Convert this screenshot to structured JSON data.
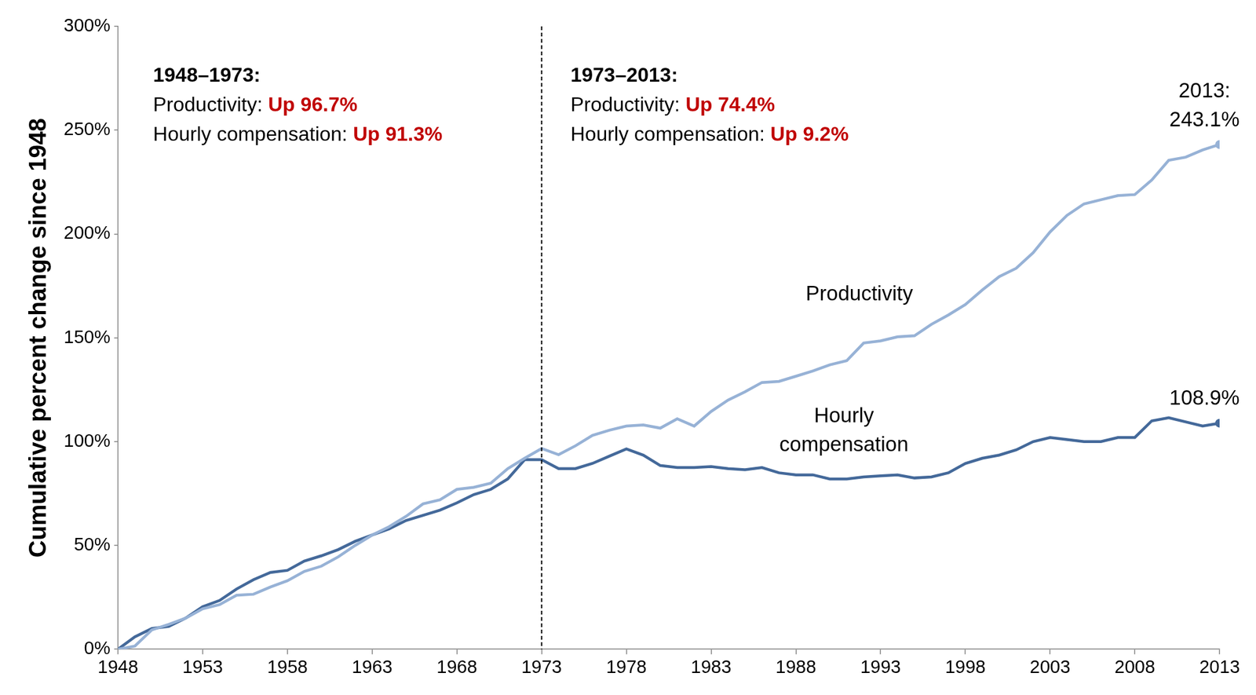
{
  "chart_data": {
    "type": "line",
    "y_label": "Cumulative percent change since 1948",
    "x": [
      1948,
      1949,
      1950,
      1951,
      1952,
      1953,
      1954,
      1955,
      1956,
      1957,
      1958,
      1959,
      1960,
      1961,
      1962,
      1963,
      1964,
      1965,
      1966,
      1967,
      1968,
      1969,
      1970,
      1971,
      1972,
      1973,
      1974,
      1975,
      1976,
      1977,
      1978,
      1979,
      1980,
      1981,
      1982,
      1983,
      1984,
      1985,
      1986,
      1987,
      1988,
      1989,
      1990,
      1991,
      1992,
      1993,
      1994,
      1995,
      1996,
      1997,
      1998,
      1999,
      2000,
      2001,
      2002,
      2003,
      2004,
      2005,
      2006,
      2007,
      2008,
      2009,
      2010,
      2011,
      2012,
      2013
    ],
    "series": [
      {
        "name": "Productivity",
        "color": "#97b2d6",
        "end_label": [
          "2013:",
          "243.1%"
        ],
        "values": [
          0,
          1.5,
          9.3,
          12,
          15,
          19.5,
          21.5,
          26,
          26.5,
          30,
          33,
          37.5,
          40,
          44.5,
          50,
          55,
          59,
          64,
          70,
          72,
          77,
          78,
          80,
          87,
          92,
          96.7,
          93.7,
          98,
          103,
          105.5,
          107.5,
          108,
          106.5,
          111,
          107.5,
          114.5,
          120,
          124,
          128.5,
          129,
          131.5,
          134,
          137,
          139,
          147.5,
          148.5,
          150.5,
          151,
          156.5,
          161,
          166,
          173,
          179.5,
          183.5,
          191,
          201,
          209,
          214.5,
          216.5,
          218.5,
          219,
          226,
          235.5,
          237,
          240.5,
          243.1
        ]
      },
      {
        "name": "Hourly compensation",
        "color": "#44699a",
        "end_label": [
          "108.9%"
        ],
        "values": [
          0,
          6,
          10,
          11,
          15,
          20.5,
          23.5,
          29,
          33.5,
          37,
          38,
          42.5,
          45,
          48,
          52,
          55,
          58,
          62,
          64.5,
          67,
          70.5,
          74.5,
          77,
          82,
          91.3,
          91.3,
          87,
          87,
          89.5,
          93,
          96.5,
          93.5,
          88.5,
          87.5,
          87.5,
          88,
          87,
          86.5,
          87.5,
          85,
          84,
          84,
          82,
          82,
          83,
          83.5,
          84,
          82.5,
          83,
          85,
          89.5,
          92,
          93.5,
          96,
          100,
          102,
          101,
          100,
          100,
          102,
          102,
          110,
          111.5,
          109.5,
          107.5,
          108.9
        ]
      }
    ],
    "xlim": [
      1948,
      2013
    ],
    "xticks": [
      1948,
      1953,
      1958,
      1963,
      1968,
      1973,
      1978,
      1983,
      1988,
      1993,
      1998,
      2003,
      2008,
      2013
    ],
    "ylim": [
      0,
      300
    ],
    "yticks": [
      {
        "value": 0,
        "label": "0%"
      },
      {
        "value": 50,
        "label": "50%"
      },
      {
        "value": 100,
        "label": "100%"
      },
      {
        "value": 150,
        "label": "150%"
      },
      {
        "value": 200,
        "label": "200%"
      },
      {
        "value": 250,
        "label": "250%"
      },
      {
        "value": 300,
        "label": "300%"
      }
    ],
    "grid": false,
    "reference_line": {
      "x": 1973,
      "line_style": "dashed",
      "color": "#000000"
    },
    "annotations": [
      {
        "title": "1948–1973:",
        "color": "#c00000",
        "lines": [
          {
            "text": "Productivity:",
            "highlight": "Up 96.7%"
          },
          {
            "text": "Hourly compensation:",
            "highlight": "Up 91.3%"
          }
        ]
      },
      {
        "title": "1973–2013:",
        "color": "#c00000",
        "lines": [
          {
            "text": "Productivity:",
            "highlight": "Up 74.4%"
          },
          {
            "text": "Hourly compensation:",
            "highlight": "Up 9.2%"
          }
        ]
      }
    ]
  }
}
